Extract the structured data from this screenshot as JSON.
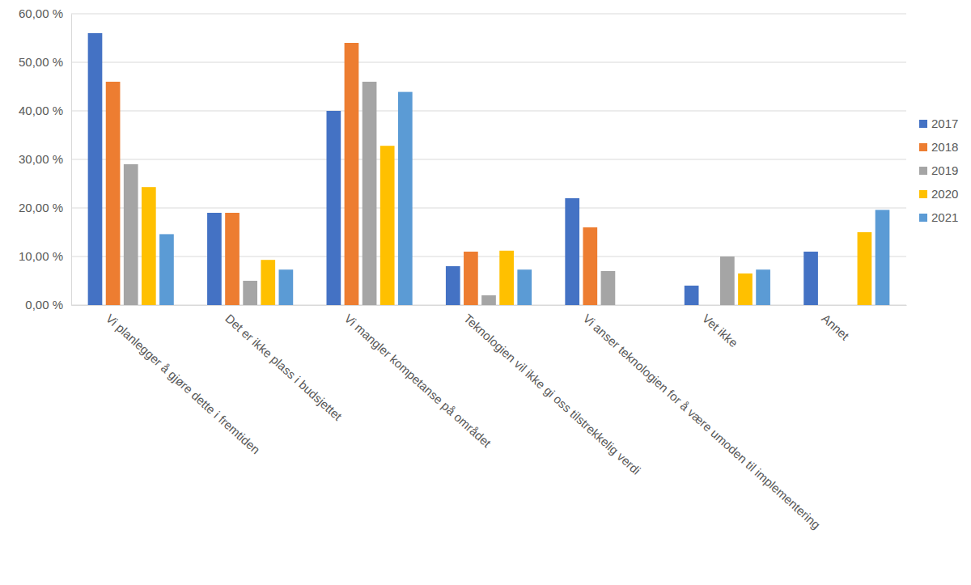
{
  "chart_data": {
    "type": "bar",
    "categories": [
      "Vi planlegger å gjøre dette i fremtiden",
      "Det er ikke plass i budsjettet",
      "Vi mangler kompetanse på området",
      "Teknologien vil ikke gi oss tilstrekkelig verdi",
      "Vi anser teknologien for å være umoden til implementering",
      "Vet ikke",
      "Annet"
    ],
    "series": [
      {
        "name": "2017",
        "color": "#4472c4",
        "values": [
          56,
          19,
          40,
          8,
          22,
          4,
          11
        ]
      },
      {
        "name": "2018",
        "color": "#ed7d31",
        "values": [
          46,
          19,
          54,
          11,
          16,
          null,
          null
        ]
      },
      {
        "name": "2019",
        "color": "#a5a5a5",
        "values": [
          29,
          5,
          46,
          2,
          7,
          10,
          null
        ]
      },
      {
        "name": "2020",
        "color": "#ffc000",
        "values": [
          24.3,
          9.3,
          32.8,
          11.2,
          null,
          6.5,
          15
        ]
      },
      {
        "name": "2021",
        "color": "#5b9bd5",
        "values": [
          14.6,
          7.3,
          43.9,
          7.3,
          null,
          7.3,
          19.6
        ]
      }
    ],
    "ylim": [
      0,
      60
    ],
    "yticks": [
      {
        "value": 0,
        "label": "0,00 %"
      },
      {
        "value": 10,
        "label": "10,00 %"
      },
      {
        "value": 20,
        "label": "20,00 %"
      },
      {
        "value": 30,
        "label": "30,00 %"
      },
      {
        "value": 40,
        "label": "40,00 %"
      },
      {
        "value": 50,
        "label": "50,00 %"
      },
      {
        "value": 60,
        "label": "60,00 %"
      }
    ],
    "grid": true,
    "legend": "right"
  }
}
